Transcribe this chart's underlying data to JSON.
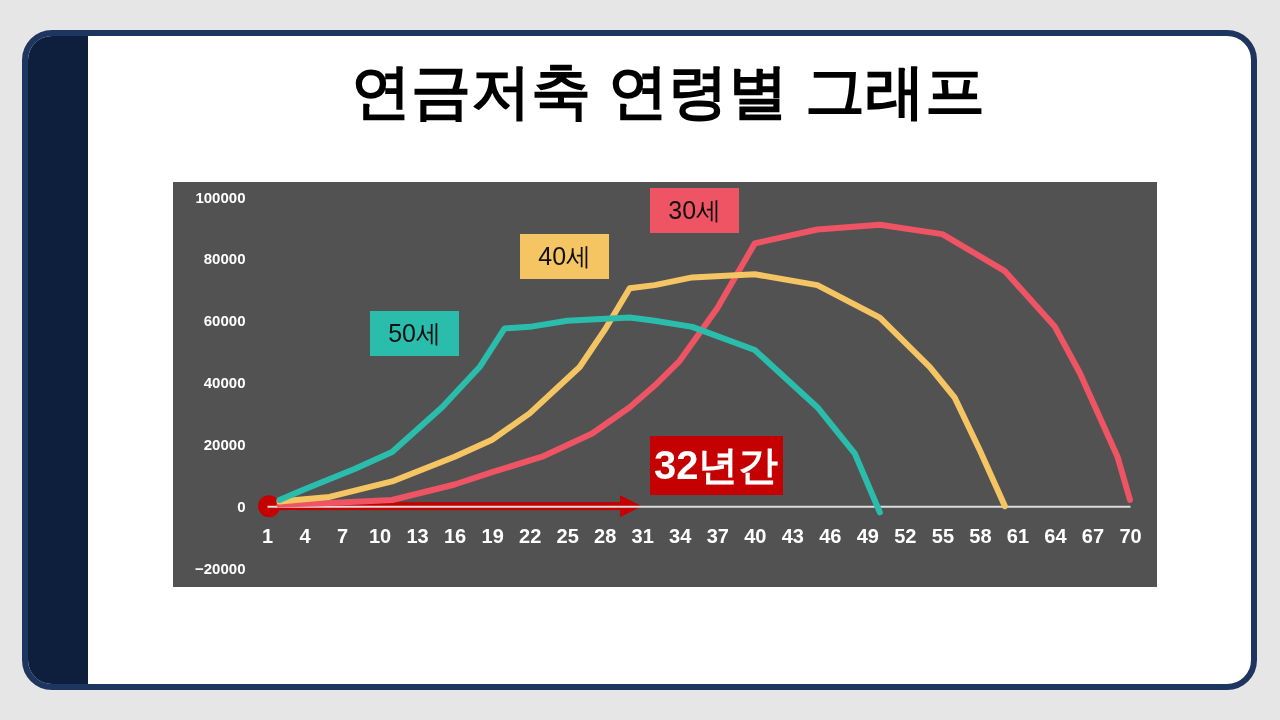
{
  "chart_data": {
    "type": "line",
    "title": "연금저축 연령별 그래프",
    "xlim": [
      1,
      70
    ],
    "xticks": [
      1,
      4,
      7,
      10,
      13,
      16,
      19,
      22,
      25,
      28,
      31,
      34,
      37,
      40,
      43,
      46,
      49,
      52,
      55,
      58,
      61,
      64,
      67,
      70
    ],
    "ylim": [
      -20000,
      100000
    ],
    "yticks": [
      -20000,
      0,
      20000,
      40000,
      60000,
      80000,
      100000
    ],
    "series": [
      {
        "name": "30세",
        "color": "#ef5464",
        "x": [
          2,
          6,
          11,
          16,
          19,
          23,
          27,
          30,
          32,
          34,
          37,
          40,
          45,
          50,
          55,
          60,
          64,
          66,
          69,
          70
        ],
        "values": [
          500,
          1000,
          2000,
          7000,
          11000,
          16000,
          23500,
          32000,
          39000,
          47000,
          64000,
          85000,
          89500,
          91000,
          88000,
          76000,
          58000,
          43000,
          16000,
          2000
        ]
      },
      {
        "name": "40세",
        "color": "#f5c563",
        "x": [
          2,
          6,
          11,
          16,
          19,
          22,
          26,
          28,
          30,
          32,
          35,
          40,
          45,
          50,
          54,
          56,
          58,
          60
        ],
        "values": [
          1500,
          3000,
          8000,
          16000,
          21500,
          30000,
          45000,
          57000,
          70500,
          71500,
          74000,
          75000,
          71500,
          61000,
          45000,
          35000,
          18000,
          0
        ]
      },
      {
        "name": "50세",
        "color": "#2bbdab",
        "x": [
          2,
          4,
          8,
          11,
          15,
          18,
          20,
          22,
          25,
          30,
          32,
          35,
          40,
          45,
          48,
          50
        ],
        "values": [
          2000,
          5500,
          12000,
          17500,
          32000,
          45000,
          57500,
          58000,
          60000,
          61000,
          60000,
          58000,
          50500,
          32000,
          17000,
          -2000
        ]
      }
    ],
    "annotations": [
      "32년간"
    ]
  }
}
